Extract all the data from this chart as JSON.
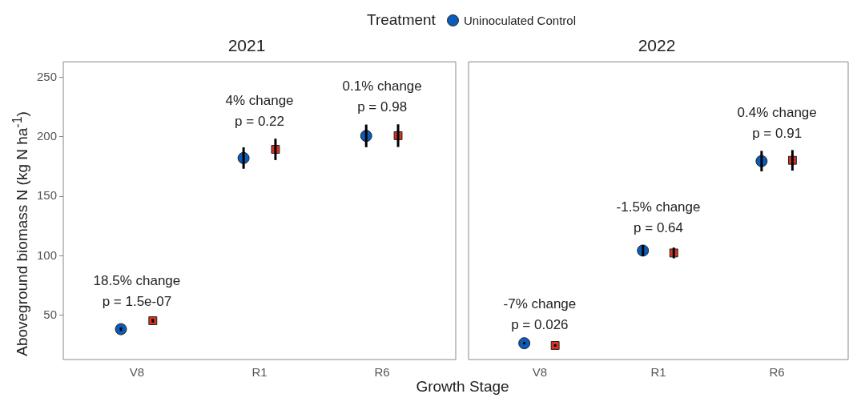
{
  "chart_data": [
    {
      "type": "scatter",
      "title": "2021",
      "xlabel": "Growth Stage",
      "ylabel": "Aboveground biomass N (kg N  ha$^{-1}$)",
      "legend_title": "Treatment",
      "legend": "top",
      "grid": false,
      "categories": [
        "V8",
        "R1",
        "R6"
      ],
      "ylim": [
        13,
        263
      ],
      "yticks": [
        50,
        100,
        150,
        200,
        250
      ],
      "series": [
        {
          "name": "Uninoculated Control",
          "color": "#0a5cb8",
          "marker": "circle",
          "values": [
            38.5,
            182.2,
            200.8
          ],
          "errors": [
            1.5,
            9,
            9.5
          ]
        },
        {
          "color": "#d93320",
          "marker": "square",
          "values": [
            45.6,
            189.5,
            201
          ],
          "errors": [
            1.5,
            9,
            9.5
          ]
        }
      ],
      "annotations": [
        "18.5% change\np = 1.5e-07",
        "4% change\np = 0.22",
        "0.1% change\np = 0.98"
      ]
    },
    {
      "type": "scatter",
      "title": "2022",
      "legend": false,
      "grid": false,
      "tick_labels": "x",
      "categories": [
        "V8",
        "R1",
        "R6"
      ],
      "ylim": [
        13,
        263
      ],
      "yticks": [
        50,
        100,
        150,
        200,
        250
      ],
      "series": [
        {
          "color": "#0a5cb8",
          "marker": "circle",
          "values": [
            26.7,
            104.5,
            179.6
          ],
          "errors": [
            1,
            4.5,
            8.6
          ]
        },
        {
          "color": "#d93320",
          "marker": "square",
          "values": [
            24.8,
            102.5,
            180.3
          ],
          "errors": [
            1,
            4.5,
            8.6
          ]
        }
      ],
      "annotations": [
        "-7% change\np = 0.026",
        "-1.5% change\np = 0.64",
        "0.4% change\np = 0.91"
      ]
    }
  ]
}
